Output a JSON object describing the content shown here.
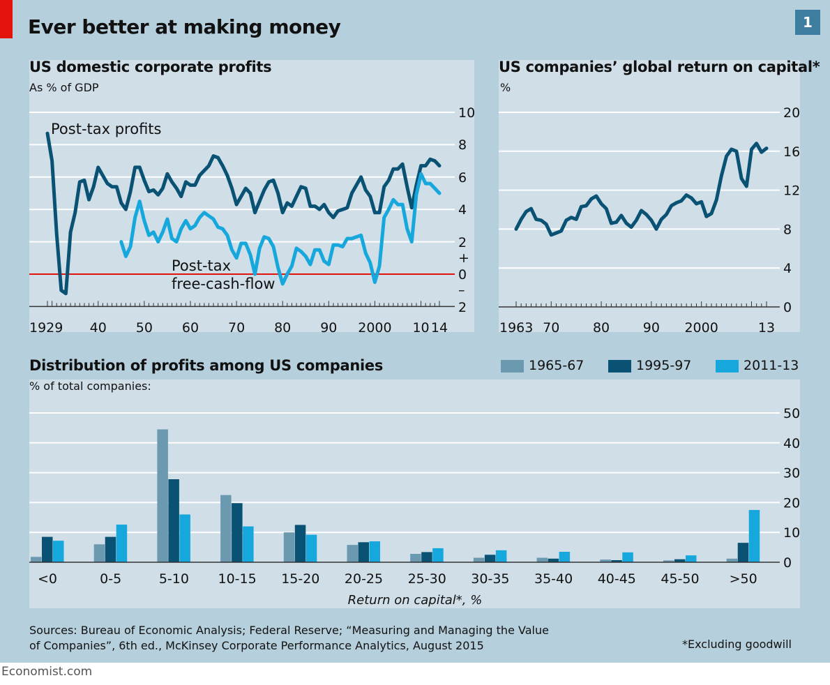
{
  "title": "Ever better at making money",
  "chart_number": "1",
  "colors": {
    "dark": "#0a5274",
    "bright": "#16a7dc",
    "grey": "#6b99b0",
    "red": "#e3120b",
    "panel": "#cfdee7",
    "frame": "#b6cfdc"
  },
  "sources": "Sources: Bureau of Economic Analysis; Federal Reserve; “Measuring and Managing the Value of Companies”, 6th ed., McKinsey Corporate Performance Analytics, August 2015",
  "footnote": "*Excluding goodwill",
  "brand": "Economist.com",
  "chart_data": [
    {
      "type": "line",
      "title": "US domestic corporate profits",
      "subtitle": "As % of GDP",
      "ylim": [
        -2,
        10
      ],
      "xlim": [
        1929,
        2014
      ],
      "y_ticks": [
        "10",
        "8",
        "6",
        "4",
        "2",
        "+",
        "0",
        "–",
        "2"
      ],
      "x_tick_labels": [
        "1929",
        "40",
        "50",
        "60",
        "70",
        "80",
        "90",
        "2000",
        "10",
        "14"
      ],
      "annotations": [
        "Post-tax profits",
        "Post-tax",
        "free-cash-flow"
      ],
      "series": [
        {
          "name": "Post-tax profits",
          "x": [
            1929,
            1930,
            1931,
            1932,
            1933,
            1934,
            1935,
            1936,
            1937,
            1938,
            1939,
            1940,
            1941,
            1942,
            1943,
            1944,
            1945,
            1946,
            1947,
            1948,
            1949,
            1950,
            1951,
            1952,
            1953,
            1954,
            1955,
            1956,
            1957,
            1958,
            1959,
            1960,
            1961,
            1962,
            1963,
            1964,
            1965,
            1966,
            1967,
            1968,
            1969,
            1970,
            1971,
            1972,
            1973,
            1974,
            1975,
            1976,
            1977,
            1978,
            1979,
            1980,
            1981,
            1982,
            1983,
            1984,
            1985,
            1986,
            1987,
            1988,
            1989,
            1990,
            1991,
            1992,
            1993,
            1994,
            1995,
            1996,
            1997,
            1998,
            1999,
            2000,
            2001,
            2002,
            2003,
            2004,
            2005,
            2006,
            2007,
            2008,
            2009,
            2010,
            2011,
            2012,
            2013,
            2014
          ],
          "values": [
            8.7,
            7.0,
            2.5,
            -1.0,
            -1.2,
            2.6,
            3.8,
            5.7,
            5.8,
            4.6,
            5.4,
            6.6,
            6.1,
            5.6,
            5.4,
            5.4,
            4.4,
            4.0,
            5.1,
            6.6,
            6.6,
            5.8,
            5.1,
            5.2,
            4.9,
            5.3,
            6.2,
            5.7,
            5.3,
            4.8,
            5.7,
            5.5,
            5.5,
            6.1,
            6.4,
            6.7,
            7.3,
            7.2,
            6.7,
            6.1,
            5.3,
            4.3,
            4.8,
            5.3,
            5.0,
            3.8,
            4.5,
            5.2,
            5.7,
            5.8,
            5.0,
            3.8,
            4.4,
            4.2,
            4.8,
            5.4,
            5.3,
            4.2,
            4.2,
            4.0,
            4.3,
            3.8,
            3.5,
            3.9,
            4.0,
            4.1,
            5.0,
            5.5,
            6.0,
            5.2,
            4.8,
            3.8,
            3.8,
            5.4,
            5.8,
            6.5,
            6.5,
            6.8,
            5.4,
            4.1,
            5.5,
            6.7,
            6.7,
            7.1,
            7.0,
            6.7
          ]
        },
        {
          "name": "Post-tax free-cash-flow",
          "x": [
            1945,
            1946,
            1947,
            1948,
            1949,
            1950,
            1951,
            1952,
            1953,
            1954,
            1955,
            1956,
            1957,
            1958,
            1959,
            1960,
            1961,
            1962,
            1963,
            1964,
            1965,
            1966,
            1967,
            1968,
            1969,
            1970,
            1971,
            1972,
            1973,
            1974,
            1975,
            1976,
            1977,
            1978,
            1979,
            1980,
            1981,
            1982,
            1983,
            1984,
            1985,
            1986,
            1987,
            1988,
            1989,
            1990,
            1991,
            1992,
            1993,
            1994,
            1995,
            1996,
            1997,
            1998,
            1999,
            2000,
            2001,
            2002,
            2003,
            2004,
            2005,
            2006,
            2007,
            2008,
            2009,
            2010,
            2011,
            2012,
            2013,
            2014
          ],
          "values": [
            2.0,
            1.1,
            1.7,
            3.5,
            4.5,
            3.3,
            2.4,
            2.6,
            2.0,
            2.6,
            3.4,
            2.2,
            2.0,
            2.8,
            3.3,
            2.8,
            3.0,
            3.5,
            3.8,
            3.6,
            3.4,
            2.9,
            2.8,
            2.4,
            1.5,
            1.0,
            1.9,
            1.9,
            1.2,
            0.0,
            1.6,
            2.3,
            2.2,
            1.7,
            0.4,
            -0.6,
            0.0,
            0.5,
            1.6,
            1.4,
            1.1,
            0.6,
            1.5,
            1.5,
            0.8,
            0.6,
            1.8,
            1.8,
            1.7,
            2.2,
            2.2,
            2.3,
            2.4,
            1.3,
            0.7,
            -0.5,
            0.5,
            3.5,
            4.0,
            4.6,
            4.3,
            4.3,
            2.8,
            2.0,
            4.9,
            6.2,
            5.6,
            5.6,
            5.3,
            5.0
          ]
        }
      ]
    },
    {
      "type": "line",
      "title": "US companies’ global return on capital*",
      "subtitle": "%",
      "ylim": [
        0,
        20
      ],
      "xlim": [
        1963,
        2013
      ],
      "y_ticks": [
        "20",
        "16",
        "12",
        "8",
        "4",
        "0"
      ],
      "x_tick_labels": [
        "1963",
        "70",
        "80",
        "90",
        "2000",
        "13"
      ],
      "series": [
        {
          "name": "Return on capital",
          "x": [
            1963,
            1964,
            1965,
            1966,
            1967,
            1968,
            1969,
            1970,
            1971,
            1972,
            1973,
            1974,
            1975,
            1976,
            1977,
            1978,
            1979,
            1980,
            1981,
            1982,
            1983,
            1984,
            1985,
            1986,
            1987,
            1988,
            1989,
            1990,
            1991,
            1992,
            1993,
            1994,
            1995,
            1996,
            1997,
            1998,
            1999,
            2000,
            2001,
            2002,
            2003,
            2004,
            2005,
            2006,
            2007,
            2008,
            2009,
            2010,
            2011,
            2012,
            2013
          ],
          "values": [
            8.0,
            9.0,
            9.8,
            10.1,
            9.0,
            8.9,
            8.5,
            7.4,
            7.6,
            7.8,
            8.9,
            9.2,
            9.0,
            10.3,
            10.4,
            11.1,
            11.4,
            10.6,
            10.1,
            8.6,
            8.7,
            9.4,
            8.6,
            8.2,
            8.9,
            9.9,
            9.5,
            8.9,
            8.0,
            9.0,
            9.5,
            10.4,
            10.7,
            10.9,
            11.5,
            11.2,
            10.6,
            10.8,
            9.3,
            9.6,
            11.0,
            13.5,
            15.5,
            16.2,
            16.0,
            13.2,
            12.4,
            16.2,
            16.8,
            15.9,
            16.3
          ]
        }
      ]
    },
    {
      "type": "bar",
      "title": "Distribution of profits among US companies",
      "subtitle": "% of total companies:",
      "xlabel": "Return on capital*, %",
      "ylim": [
        0,
        50
      ],
      "y_ticks": [
        "50",
        "40",
        "30",
        "20",
        "10",
        "0"
      ],
      "categories": [
        "<0",
        "0-5",
        "5-10",
        "10-15",
        "15-20",
        "20-25",
        "25-30",
        "30-35",
        "35-40",
        "40-45",
        "45-50",
        ">50"
      ],
      "series": [
        {
          "name": "1965-67",
          "values": [
            1.8,
            6.0,
            44.5,
            22.5,
            10.0,
            5.8,
            2.8,
            1.5,
            1.5,
            0.9,
            0.6,
            1.2
          ]
        },
        {
          "name": "1995-97",
          "values": [
            8.5,
            8.5,
            27.8,
            19.8,
            12.5,
            6.7,
            3.4,
            2.5,
            1.2,
            0.7,
            1.0,
            6.5
          ]
        },
        {
          "name": "2011-13",
          "values": [
            7.2,
            12.6,
            16.0,
            12.0,
            9.2,
            7.0,
            4.7,
            4.0,
            3.5,
            3.3,
            2.3,
            17.5
          ]
        }
      ]
    }
  ]
}
